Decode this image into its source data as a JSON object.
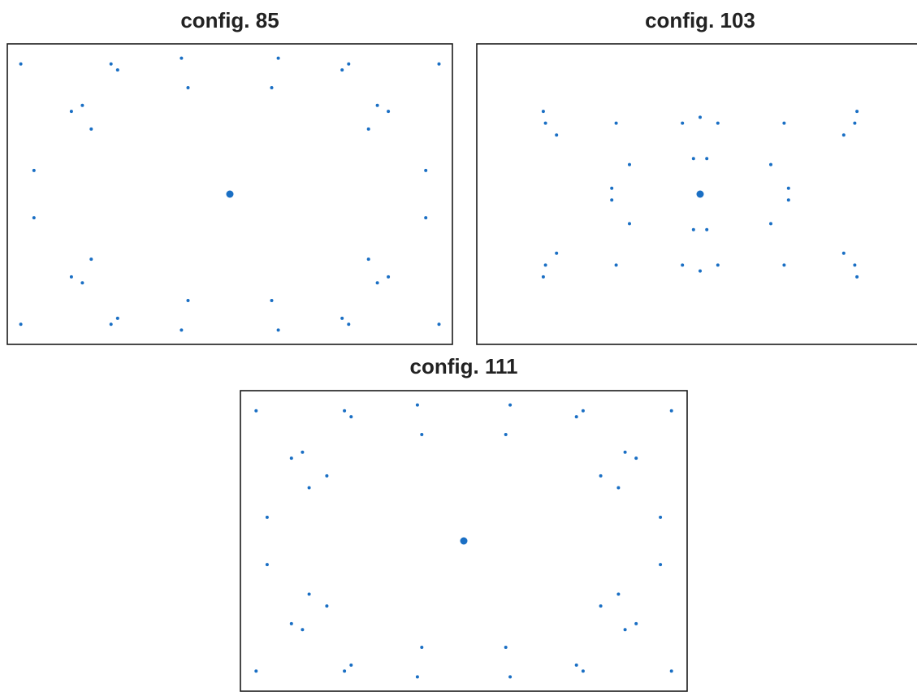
{
  "style": {
    "point_color": "#1a6fc4",
    "frame_color": "#1a1a1a"
  },
  "chart_data": [
    {
      "type": "scatter",
      "title": "config. 85",
      "xlim": [
        -1.0,
        1.0
      ],
      "ylim": [
        -1.0,
        1.0
      ],
      "grid": false,
      "center_point": [
        0.0,
        0.0
      ],
      "points": [
        [
          -0.95,
          0.88
        ],
        [
          -0.54,
          0.88
        ],
        [
          -0.51,
          0.84
        ],
        [
          -0.22,
          0.92
        ],
        [
          0.22,
          0.92
        ],
        [
          0.51,
          0.84
        ],
        [
          0.54,
          0.88
        ],
        [
          0.95,
          0.88
        ],
        [
          -0.19,
          0.72
        ],
        [
          0.19,
          0.72
        ],
        [
          -0.72,
          0.56
        ],
        [
          -0.67,
          0.6
        ],
        [
          0.67,
          0.6
        ],
        [
          0.72,
          0.56
        ],
        [
          -0.63,
          0.44
        ],
        [
          0.63,
          0.44
        ],
        [
          -0.89,
          0.16
        ],
        [
          0.89,
          0.16
        ],
        [
          -0.89,
          -0.16
        ],
        [
          0.89,
          -0.16
        ],
        [
          -0.63,
          -0.44
        ],
        [
          0.63,
          -0.44
        ],
        [
          -0.72,
          -0.56
        ],
        [
          -0.67,
          -0.6
        ],
        [
          0.67,
          -0.6
        ],
        [
          0.72,
          -0.56
        ],
        [
          -0.19,
          -0.72
        ],
        [
          0.19,
          -0.72
        ],
        [
          -0.95,
          -0.88
        ],
        [
          -0.54,
          -0.88
        ],
        [
          -0.51,
          -0.84
        ],
        [
          -0.22,
          -0.92
        ],
        [
          0.22,
          -0.92
        ],
        [
          0.51,
          -0.84
        ],
        [
          0.54,
          -0.88
        ],
        [
          0.95,
          -0.88
        ]
      ]
    },
    {
      "type": "scatter",
      "title": "config. 103",
      "xlim": [
        -1.0,
        1.0
      ],
      "ylim": [
        -1.0,
        1.0
      ],
      "grid": false,
      "center_point": [
        0.0,
        0.0
      ],
      "points": [
        [
          -0.71,
          0.56
        ],
        [
          -0.7,
          0.48
        ],
        [
          -0.65,
          0.4
        ],
        [
          -0.38,
          0.48
        ],
        [
          -0.08,
          0.48
        ],
        [
          0.0,
          0.52
        ],
        [
          0.08,
          0.48
        ],
        [
          0.38,
          0.48
        ],
        [
          0.65,
          0.4
        ],
        [
          0.7,
          0.48
        ],
        [
          0.71,
          0.56
        ],
        [
          -0.32,
          0.2
        ],
        [
          -0.03,
          0.24
        ],
        [
          0.03,
          0.24
        ],
        [
          0.32,
          0.2
        ],
        [
          -0.4,
          0.04
        ],
        [
          -0.4,
          -0.04
        ],
        [
          0.4,
          0.04
        ],
        [
          0.4,
          -0.04
        ],
        [
          -0.32,
          -0.2
        ],
        [
          -0.03,
          -0.24
        ],
        [
          0.03,
          -0.24
        ],
        [
          0.32,
          -0.2
        ],
        [
          -0.71,
          -0.56
        ],
        [
          -0.7,
          -0.48
        ],
        [
          -0.65,
          -0.4
        ],
        [
          -0.38,
          -0.48
        ],
        [
          -0.08,
          -0.48
        ],
        [
          0.0,
          -0.52
        ],
        [
          0.08,
          -0.48
        ],
        [
          0.38,
          -0.48
        ],
        [
          0.65,
          -0.4
        ],
        [
          0.7,
          -0.48
        ],
        [
          0.71,
          -0.56
        ]
      ]
    },
    {
      "type": "scatter",
      "title": "config. 111",
      "xlim": [
        -1.0,
        1.0
      ],
      "ylim": [
        -1.0,
        1.0
      ],
      "grid": false,
      "center_point": [
        0.0,
        0.0
      ],
      "points": [
        [
          -0.94,
          0.88
        ],
        [
          -0.54,
          0.88
        ],
        [
          -0.51,
          0.84
        ],
        [
          -0.21,
          0.92
        ],
        [
          0.21,
          0.92
        ],
        [
          0.51,
          0.84
        ],
        [
          0.54,
          0.88
        ],
        [
          0.94,
          0.88
        ],
        [
          -0.19,
          0.72
        ],
        [
          0.19,
          0.72
        ],
        [
          -0.78,
          0.56
        ],
        [
          -0.73,
          0.6
        ],
        [
          0.73,
          0.6
        ],
        [
          0.78,
          0.56
        ],
        [
          -0.62,
          0.44
        ],
        [
          -0.7,
          0.36
        ],
        [
          0.62,
          0.44
        ],
        [
          0.7,
          0.36
        ],
        [
          -0.89,
          0.16
        ],
        [
          0.89,
          0.16
        ],
        [
          -0.89,
          -0.16
        ],
        [
          0.89,
          -0.16
        ],
        [
          -0.62,
          -0.44
        ],
        [
          -0.7,
          -0.36
        ],
        [
          0.62,
          -0.44
        ],
        [
          0.7,
          -0.36
        ],
        [
          -0.78,
          -0.56
        ],
        [
          -0.73,
          -0.6
        ],
        [
          0.73,
          -0.6
        ],
        [
          0.78,
          -0.56
        ],
        [
          -0.19,
          -0.72
        ],
        [
          0.19,
          -0.72
        ],
        [
          -0.94,
          -0.88
        ],
        [
          -0.54,
          -0.88
        ],
        [
          -0.51,
          -0.84
        ],
        [
          -0.21,
          -0.92
        ],
        [
          0.21,
          -0.92
        ],
        [
          0.51,
          -0.84
        ],
        [
          0.54,
          -0.88
        ],
        [
          0.94,
          -0.88
        ]
      ]
    }
  ]
}
